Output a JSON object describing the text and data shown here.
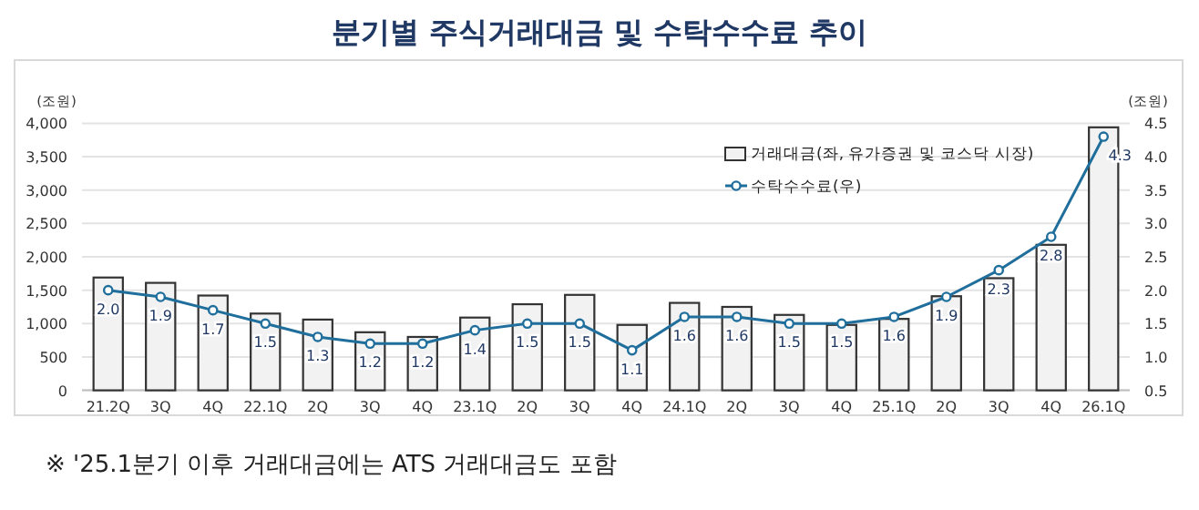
{
  "chart_data": {
    "type": "bar",
    "title": "분기별 주식거래대금 및 수탁수수료 추이",
    "categories": [
      "21.2Q",
      "3Q",
      "4Q",
      "22.1Q",
      "2Q",
      "3Q",
      "4Q",
      "23.1Q",
      "2Q",
      "3Q",
      "4Q",
      "24.1Q",
      "2Q",
      "3Q",
      "4Q",
      "25.1Q",
      "2Q",
      "3Q",
      "4Q",
      "26.1Q"
    ],
    "series": [
      {
        "name": "거래대금(좌, 유가증권 및 코스닥 시장)",
        "color": "#f2f2f2",
        "values": [
          1690,
          1610,
          1420,
          1150,
          1060,
          870,
          800,
          1090,
          1290,
          1430,
          980,
          1310,
          1250,
          1130,
          980,
          1070,
          1410,
          1680,
          2180,
          3940
        ]
      },
      {
        "name": "수탁수수료(우)",
        "type": "line",
        "axis": "y2",
        "color": "#1f6e9c",
        "marker": "circle",
        "value_labels": [
          "2.0",
          "1.9",
          "1.7",
          "1.5",
          "1.3",
          "1.2",
          "1.2",
          "1.4",
          "1.5",
          "1.5",
          "1.1",
          "1.6",
          "1.6",
          "1.5",
          "1.5",
          "1.6",
          "1.9",
          "2.3",
          "2.8",
          "4.3"
        ],
        "values": [
          2.0,
          1.9,
          1.7,
          1.5,
          1.3,
          1.2,
          1.2,
          1.4,
          1.5,
          1.5,
          1.1,
          1.6,
          1.6,
          1.5,
          1.5,
          1.6,
          1.9,
          2.3,
          2.8,
          4.3
        ]
      }
    ],
    "ylabel": "(조원)",
    "y2label": "(조원)",
    "ylim": [
      0,
      4000
    ],
    "yticks": [
      {
        "value": 0,
        "label": "0"
      },
      {
        "value": 500,
        "label": "500"
      },
      {
        "value": 1000,
        "label": "1,000"
      },
      {
        "value": 1500,
        "label": "1,500"
      },
      {
        "value": 2000,
        "label": "2,000"
      },
      {
        "value": 2500,
        "label": "2,500"
      },
      {
        "value": 3000,
        "label": "3,000"
      },
      {
        "value": 3500,
        "label": "3,500"
      },
      {
        "value": 4000,
        "label": "4,000"
      }
    ],
    "y2lim": [
      0.5,
      4.5
    ],
    "y2ticks": [
      {
        "value": 0.5,
        "label": "0.5"
      },
      {
        "value": 1,
        "label": "1.0"
      },
      {
        "value": 1.5,
        "label": "1.5"
      },
      {
        "value": 2,
        "label": "2.0"
      },
      {
        "value": 2.5,
        "label": "2.5"
      },
      {
        "value": 3,
        "label": "3.0"
      },
      {
        "value": 3.5,
        "label": "3.5"
      },
      {
        "value": 4,
        "label": "4.0"
      },
      {
        "value": 4.5,
        "label": "4.5"
      }
    ],
    "grid": "y",
    "legend": "top right",
    "annotations": [
      "※ '25.1분기 이후 거래대금에는 ATS 거래대금도 포함"
    ]
  }
}
